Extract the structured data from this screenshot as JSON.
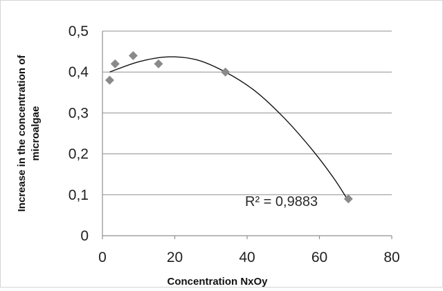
{
  "chart_data": {
    "type": "scatter",
    "title": "",
    "xlabel": "Concentration NxOy",
    "ylabel": "Increase in the concentration of microalgae",
    "xlim": [
      0,
      80
    ],
    "ylim": [
      0,
      0.5
    ],
    "x_ticks": [
      "0",
      "20",
      "40",
      "60",
      "80"
    ],
    "y_ticks": [
      "0",
      "0,1",
      "0,2",
      "0,3",
      "0,4",
      "0,5"
    ],
    "grid": "horizontal",
    "legend": "none",
    "series": [
      {
        "points": [
          {
            "x": 2,
            "y": 0.38
          },
          {
            "x": 3.5,
            "y": 0.42
          },
          {
            "x": 8.5,
            "y": 0.44
          },
          {
            "x": 15.5,
            "y": 0.42
          },
          {
            "x": 34,
            "y": 0.4
          },
          {
            "x": 68,
            "y": 0.09
          }
        ],
        "color": "#8a8a8a",
        "marker": "diamond"
      }
    ],
    "trendline": {
      "type": "polynomial",
      "r2_label": "R² = 0,9883",
      "x_range": [
        2,
        68
      ],
      "y_at": [
        {
          "x": 2,
          "y": 0.4
        },
        {
          "x": 10,
          "y": 0.425
        },
        {
          "x": 18,
          "y": 0.437
        },
        {
          "x": 26,
          "y": 0.43
        },
        {
          "x": 34,
          "y": 0.4
        },
        {
          "x": 42,
          "y": 0.355
        },
        {
          "x": 50,
          "y": 0.29
        },
        {
          "x": 58,
          "y": 0.21
        },
        {
          "x": 64,
          "y": 0.14
        },
        {
          "x": 68,
          "y": 0.085
        }
      ],
      "color": "#111111"
    }
  }
}
